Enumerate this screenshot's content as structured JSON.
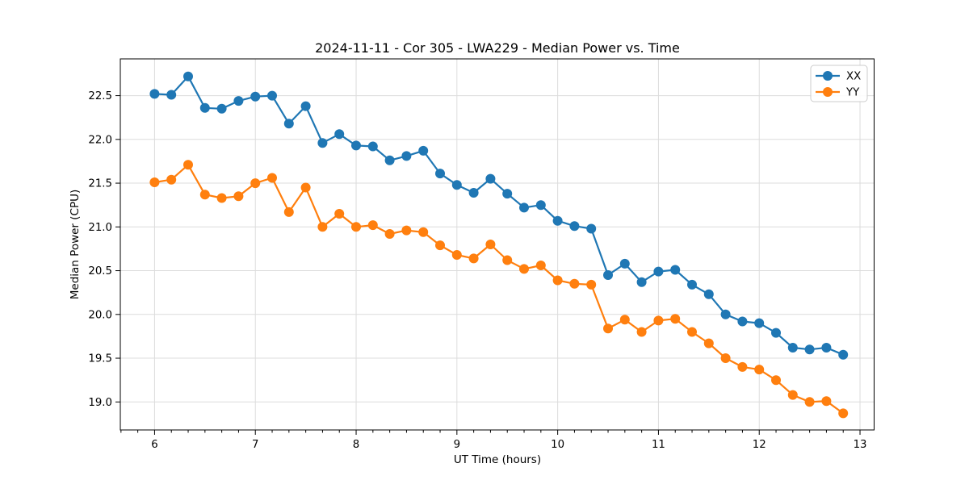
{
  "page": {
    "background": "#ffffff"
  },
  "chart_data": {
    "type": "line",
    "title": "2024-11-11 - Cor 305 - LWA229 - Median Power vs. Time",
    "xlabel": "UT Time (hours)",
    "ylabel": "Median Power (CPU)",
    "xlim": [
      5.66,
      13.14
    ],
    "ylim": [
      18.68,
      22.92
    ],
    "x_major_ticks": [
      6,
      7,
      8,
      9,
      10,
      11,
      12,
      13
    ],
    "x_minor_divisions": 6,
    "y_ticks": [
      19.0,
      19.5,
      20.0,
      20.5,
      21.0,
      21.5,
      22.0,
      22.5
    ],
    "grid": true,
    "legend_loc": "upper right",
    "x": [
      6.0,
      6.1667,
      6.3333,
      6.5,
      6.6667,
      6.8333,
      7.0,
      7.1667,
      7.3333,
      7.5,
      7.6667,
      7.8333,
      8.0,
      8.1667,
      8.3333,
      8.5,
      8.6667,
      8.8333,
      9.0,
      9.1667,
      9.3333,
      9.5,
      9.6667,
      9.8333,
      10.0,
      10.1667,
      10.3333,
      10.5,
      10.6667,
      10.8333,
      11.0,
      11.1667,
      11.3333,
      11.5,
      11.6667,
      11.8333,
      12.0,
      12.1667,
      12.3333,
      12.5,
      12.6667,
      12.8333
    ],
    "series": [
      {
        "name": "XX",
        "color": "#1f77b4",
        "values": [
          22.52,
          22.51,
          22.72,
          22.36,
          22.35,
          22.44,
          22.49,
          22.5,
          22.18,
          22.38,
          21.96,
          22.06,
          21.93,
          21.92,
          21.76,
          21.81,
          21.87,
          21.61,
          21.48,
          21.39,
          21.55,
          21.38,
          21.22,
          21.25,
          21.07,
          21.01,
          20.98,
          20.45,
          20.58,
          20.37,
          20.49,
          20.51,
          20.34,
          20.23,
          20.0,
          19.92,
          19.9,
          19.79,
          19.62,
          19.6,
          19.62,
          19.54
        ]
      },
      {
        "name": "YY",
        "color": "#ff7f0e",
        "values": [
          21.51,
          21.54,
          21.71,
          21.37,
          21.33,
          21.35,
          21.5,
          21.56,
          21.17,
          21.45,
          21.0,
          21.15,
          21.0,
          21.02,
          20.92,
          20.96,
          20.94,
          20.79,
          20.68,
          20.64,
          20.8,
          20.62,
          20.52,
          20.56,
          20.39,
          20.35,
          20.34,
          19.84,
          19.94,
          19.8,
          19.93,
          19.95,
          19.8,
          19.67,
          19.5,
          19.4,
          19.37,
          19.25,
          19.08,
          19.0,
          19.01,
          18.87
        ]
      }
    ]
  }
}
